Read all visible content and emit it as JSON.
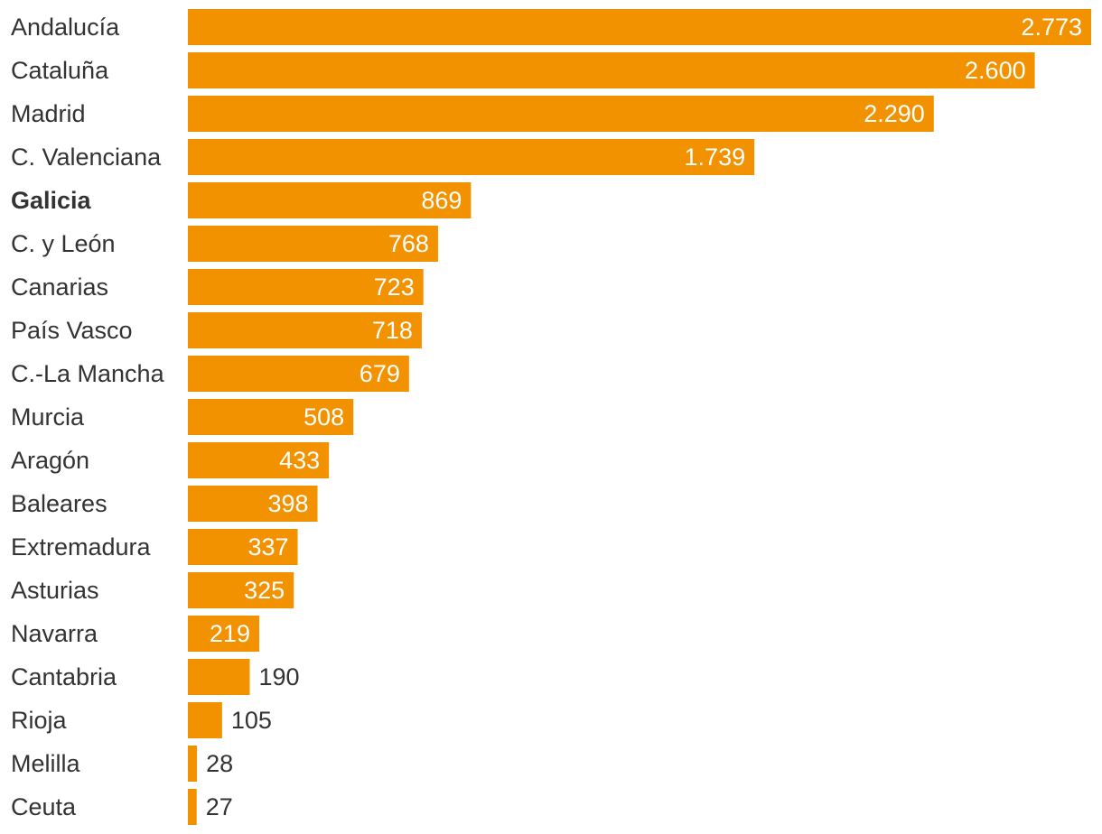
{
  "chart_data": {
    "type": "bar",
    "orientation": "horizontal",
    "bar_color": "#f39200",
    "highlight_category": "Galicia",
    "categories": [
      "Andalucía",
      "Cataluña",
      "Madrid",
      "C. Valenciana",
      "Galicia",
      "C. y León",
      "Canarias",
      "País Vasco",
      "C.-La Mancha",
      "Murcia",
      "Aragón",
      "Baleares",
      "Extremadura",
      "Asturias",
      "Navarra",
      "Cantabria",
      "Rioja",
      "Melilla",
      "Ceuta"
    ],
    "values": [
      2773,
      2600,
      2290,
      1739,
      869,
      768,
      723,
      718,
      679,
      508,
      433,
      398,
      337,
      325,
      219,
      190,
      105,
      28,
      27
    ],
    "value_labels": [
      "2.773",
      "2.600",
      "2.290",
      "1.739",
      "869",
      "768",
      "723",
      "718",
      "679",
      "508",
      "433",
      "398",
      "337",
      "325",
      "219",
      "190",
      "105",
      "28",
      "27"
    ],
    "xlim": [
      0,
      2773
    ],
    "grid": false,
    "legend": "none"
  }
}
